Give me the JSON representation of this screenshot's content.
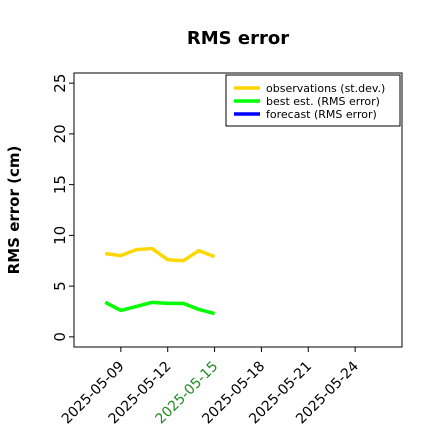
{
  "chart_data": {
    "type": "line",
    "title": "RMS error",
    "xlabel": "",
    "ylabel": "RMS error (cm)",
    "ylim": [
      -1,
      26
    ],
    "xlim": [
      "2025-05-06",
      "2025-05-27"
    ],
    "yticks": [
      0,
      5,
      10,
      15,
      20,
      25
    ],
    "xticks": [
      "2025-05-09",
      "2025-05-12",
      "2025-05-15",
      "2025-05-18",
      "2025-05-21",
      "2025-05-24"
    ],
    "highlight_tick": "2025-05-15",
    "highlight_color": "#228b22",
    "grid": false,
    "legend_position": "top-right",
    "series": [
      {
        "name": "observations (st.dev.)",
        "color": "#ffd700",
        "x": [
          "2025-05-08",
          "2025-05-09",
          "2025-05-10",
          "2025-05-11",
          "2025-05-12",
          "2025-05-13",
          "2025-05-14",
          "2025-05-15"
        ],
        "values": [
          8.2,
          8.0,
          8.6,
          8.7,
          7.6,
          7.5,
          8.5,
          7.9
        ]
      },
      {
        "name": "best est. (RMS error)",
        "color": "#00ff00",
        "x": [
          "2025-05-08",
          "2025-05-09",
          "2025-05-10",
          "2025-05-11",
          "2025-05-12",
          "2025-05-13",
          "2025-05-14",
          "2025-05-15"
        ],
        "values": [
          3.4,
          2.6,
          3.0,
          3.4,
          3.3,
          3.3,
          2.7,
          2.3
        ]
      },
      {
        "name": "forecast (RMS error)",
        "color": "#0000ff",
        "x": [],
        "values": []
      }
    ]
  }
}
